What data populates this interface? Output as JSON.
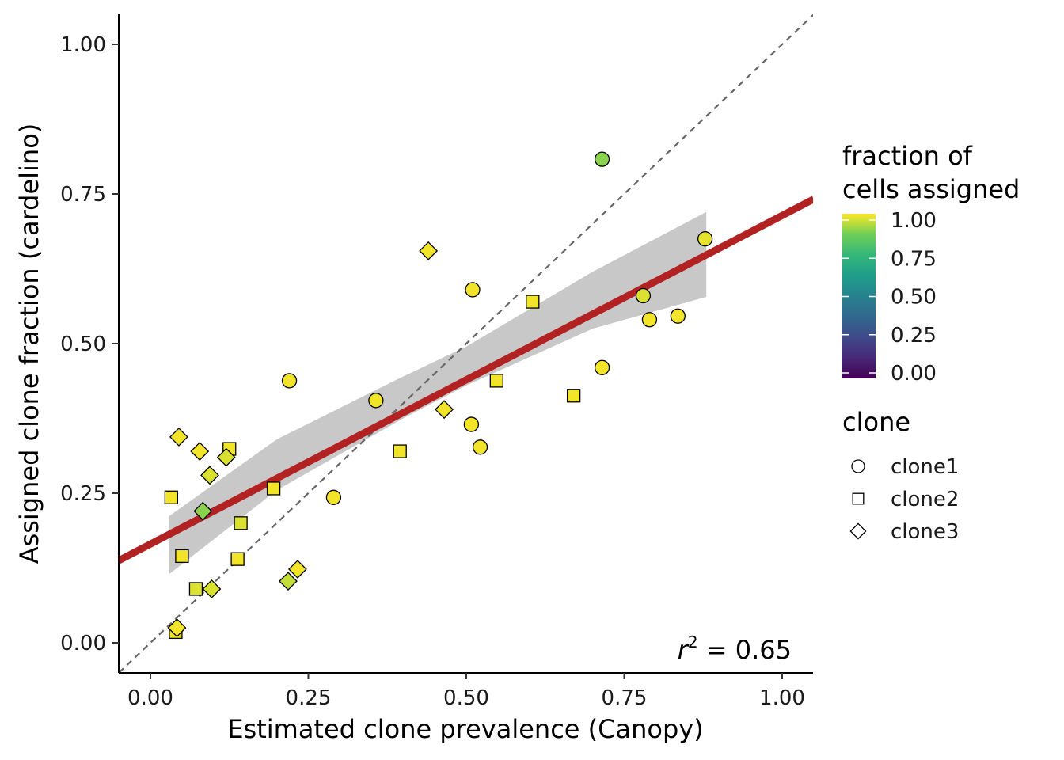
{
  "chart_data": {
    "type": "scatter",
    "xlabel": "Estimated clone prevalence (Canopy)",
    "ylabel": "Assigned clone fraction (cardelino)",
    "xlim": [
      -0.05,
      1.05
    ],
    "ylim": [
      -0.05,
      1.05
    ],
    "x_ticks": [
      "0.00",
      "0.25",
      "0.50",
      "0.75",
      "1.00"
    ],
    "y_ticks": [
      "0.00",
      "0.25",
      "0.50",
      "0.75",
      "1.00"
    ],
    "grid": false,
    "reference_line": {
      "type": "identity",
      "style": "dashed",
      "color": "#666666"
    },
    "fit_line": {
      "type": "linear",
      "intercept": 0.165,
      "slope": 0.549,
      "color": "#b22222"
    },
    "confidence_band": {
      "color": "#c8c8c8",
      "lower": [
        [
          0.03,
          0.115
        ],
        [
          0.2,
          0.255
        ],
        [
          0.4,
          0.375
        ],
        [
          0.5,
          0.43
        ],
        [
          0.7,
          0.525
        ],
        [
          0.88,
          0.578
        ]
      ],
      "upper": [
        [
          0.03,
          0.212
        ],
        [
          0.2,
          0.34
        ],
        [
          0.4,
          0.445
        ],
        [
          0.5,
          0.495
        ],
        [
          0.7,
          0.62
        ],
        [
          0.88,
          0.72
        ]
      ]
    },
    "annotation": {
      "text": "r",
      "superscript": "2",
      "suffix": " = 0.65"
    },
    "color_legend": {
      "title_line1": "fraction of",
      "title_line2": "cells assigned",
      "ticks": [
        "1.00",
        "0.75",
        "0.50",
        "0.25",
        "0.00"
      ],
      "colormap": "viridis"
    },
    "shape_legend": {
      "title": "clone",
      "entries": [
        {
          "label": "clone1",
          "shape": "circle"
        },
        {
          "label": "clone2",
          "shape": "square"
        },
        {
          "label": "clone3",
          "shape": "diamond"
        }
      ]
    },
    "points": [
      {
        "clone": "clone1",
        "x": 0.715,
        "y": 0.808,
        "f": 0.9
      },
      {
        "clone": "clone1",
        "x": 0.878,
        "y": 0.675,
        "f": 0.98
      },
      {
        "clone": "clone1",
        "x": 0.51,
        "y": 0.59,
        "f": 0.99
      },
      {
        "clone": "clone1",
        "x": 0.78,
        "y": 0.58,
        "f": 0.97
      },
      {
        "clone": "clone1",
        "x": 0.79,
        "y": 0.54,
        "f": 0.99
      },
      {
        "clone": "clone1",
        "x": 0.835,
        "y": 0.546,
        "f": 0.99
      },
      {
        "clone": "clone1",
        "x": 0.715,
        "y": 0.46,
        "f": 0.99
      },
      {
        "clone": "clone1",
        "x": 0.22,
        "y": 0.438,
        "f": 0.99
      },
      {
        "clone": "clone1",
        "x": 0.357,
        "y": 0.405,
        "f": 0.99
      },
      {
        "clone": "clone1",
        "x": 0.508,
        "y": 0.365,
        "f": 0.99
      },
      {
        "clone": "clone1",
        "x": 0.522,
        "y": 0.327,
        "f": 0.99
      },
      {
        "clone": "clone1",
        "x": 0.29,
        "y": 0.243,
        "f": 0.99
      },
      {
        "clone": "clone2",
        "x": 0.605,
        "y": 0.57,
        "f": 0.99
      },
      {
        "clone": "clone2",
        "x": 0.548,
        "y": 0.438,
        "f": 0.99
      },
      {
        "clone": "clone2",
        "x": 0.67,
        "y": 0.413,
        "f": 0.99
      },
      {
        "clone": "clone2",
        "x": 0.395,
        "y": 0.32,
        "f": 0.99
      },
      {
        "clone": "clone2",
        "x": 0.125,
        "y": 0.324,
        "f": 0.99
      },
      {
        "clone": "clone2",
        "x": 0.195,
        "y": 0.258,
        "f": 0.99
      },
      {
        "clone": "clone2",
        "x": 0.033,
        "y": 0.243,
        "f": 0.99
      },
      {
        "clone": "clone2",
        "x": 0.143,
        "y": 0.2,
        "f": 0.97
      },
      {
        "clone": "clone2",
        "x": 0.05,
        "y": 0.145,
        "f": 0.99
      },
      {
        "clone": "clone2",
        "x": 0.138,
        "y": 0.14,
        "f": 0.99
      },
      {
        "clone": "clone2",
        "x": 0.072,
        "y": 0.09,
        "f": 0.97
      },
      {
        "clone": "clone2",
        "x": 0.04,
        "y": 0.018,
        "f": 0.99
      },
      {
        "clone": "clone3",
        "x": 0.44,
        "y": 0.655,
        "f": 0.99
      },
      {
        "clone": "clone3",
        "x": 0.465,
        "y": 0.39,
        "f": 0.99
      },
      {
        "clone": "clone3",
        "x": 0.045,
        "y": 0.344,
        "f": 0.99
      },
      {
        "clone": "clone3",
        "x": 0.078,
        "y": 0.32,
        "f": 0.99
      },
      {
        "clone": "clone3",
        "x": 0.12,
        "y": 0.31,
        "f": 0.97
      },
      {
        "clone": "clone3",
        "x": 0.094,
        "y": 0.28,
        "f": 0.97
      },
      {
        "clone": "clone3",
        "x": 0.083,
        "y": 0.22,
        "f": 0.9
      },
      {
        "clone": "clone3",
        "x": 0.233,
        "y": 0.123,
        "f": 0.99
      },
      {
        "clone": "clone3",
        "x": 0.218,
        "y": 0.103,
        "f": 0.95
      },
      {
        "clone": "clone3",
        "x": 0.097,
        "y": 0.09,
        "f": 0.97
      },
      {
        "clone": "clone3",
        "x": 0.042,
        "y": 0.025,
        "f": 0.99
      }
    ]
  }
}
